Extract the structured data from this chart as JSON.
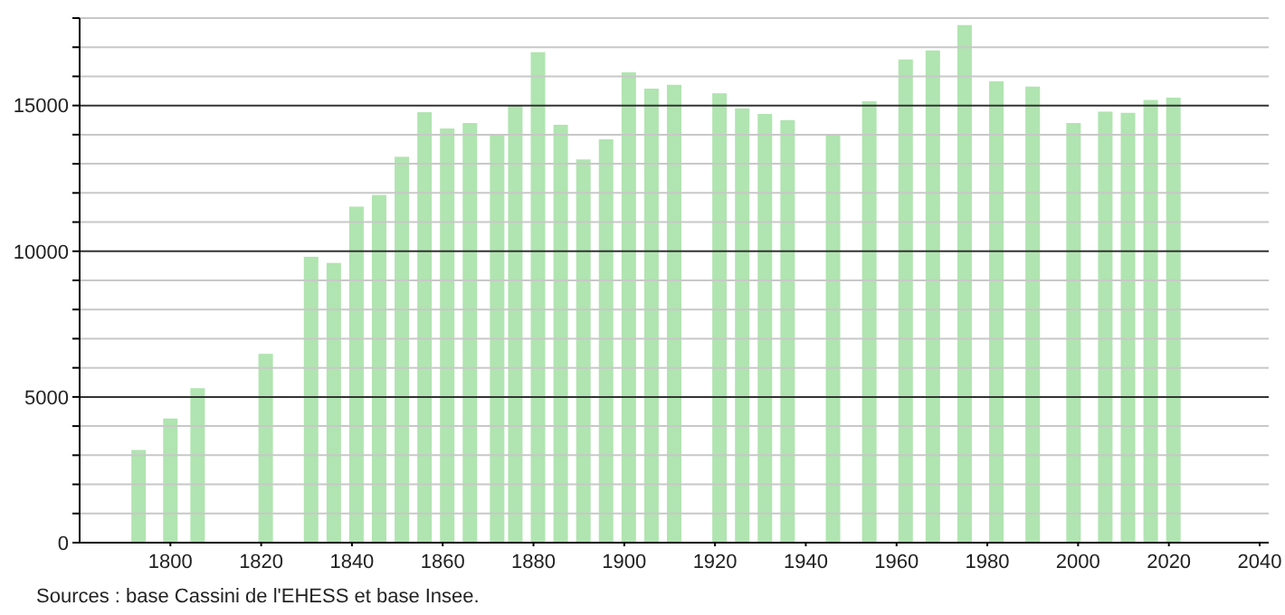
{
  "chart_data": {
    "type": "bar",
    "x": [
      1793,
      1800,
      1806,
      1821,
      1831,
      1836,
      1841,
      1846,
      1851,
      1856,
      1861,
      1866,
      1872,
      1876,
      1881,
      1886,
      1891,
      1896,
      1901,
      1906,
      1911,
      1921,
      1926,
      1931,
      1936,
      1946,
      1954,
      1962,
      1968,
      1975,
      1982,
      1990,
      1999,
      2006,
      2011,
      2016,
      2021
    ],
    "values": [
      3180,
      4260,
      5300,
      6480,
      9810,
      9600,
      11530,
      11930,
      13240,
      14770,
      14210,
      14400,
      13980,
      15000,
      16830,
      14340,
      13150,
      13840,
      16140,
      15580,
      15710,
      15420,
      14900,
      14710,
      14500,
      13980,
      15150,
      16580,
      16890,
      17760,
      15830,
      15650,
      14400,
      14790,
      14750,
      15190,
      15270
    ],
    "color": "#b0e4b0",
    "xlim": [
      1780,
      2042
    ],
    "xticks": [
      1800,
      1820,
      1840,
      1860,
      1880,
      1900,
      1920,
      1940,
      1960,
      1980,
      2000,
      2020,
      2040
    ],
    "ylim": [
      0,
      18000
    ],
    "yticks": [
      0,
      {
        "value": 1000,
        "label": null
      },
      {
        "value": 2000,
        "label": null
      },
      {
        "value": 3000,
        "label": null
      },
      {
        "value": 4000,
        "label": null
      },
      5000,
      {
        "value": 6000,
        "label": null
      },
      {
        "value": 7000,
        "label": null
      },
      {
        "value": 8000,
        "label": null
      },
      {
        "value": 9000,
        "label": null
      },
      10000,
      {
        "value": 11000,
        "label": null
      },
      {
        "value": 12000,
        "label": null
      },
      {
        "value": 13000,
        "label": null
      },
      {
        "value": 14000,
        "label": null
      },
      15000,
      {
        "value": 16000,
        "label": null
      },
      {
        "value": 17000,
        "label": null
      },
      {
        "value": 18000,
        "label": null
      }
    ],
    "grid": "y",
    "annotations": [
      "Sources : base Cassini de l'EHESS et base Insee."
    ]
  }
}
